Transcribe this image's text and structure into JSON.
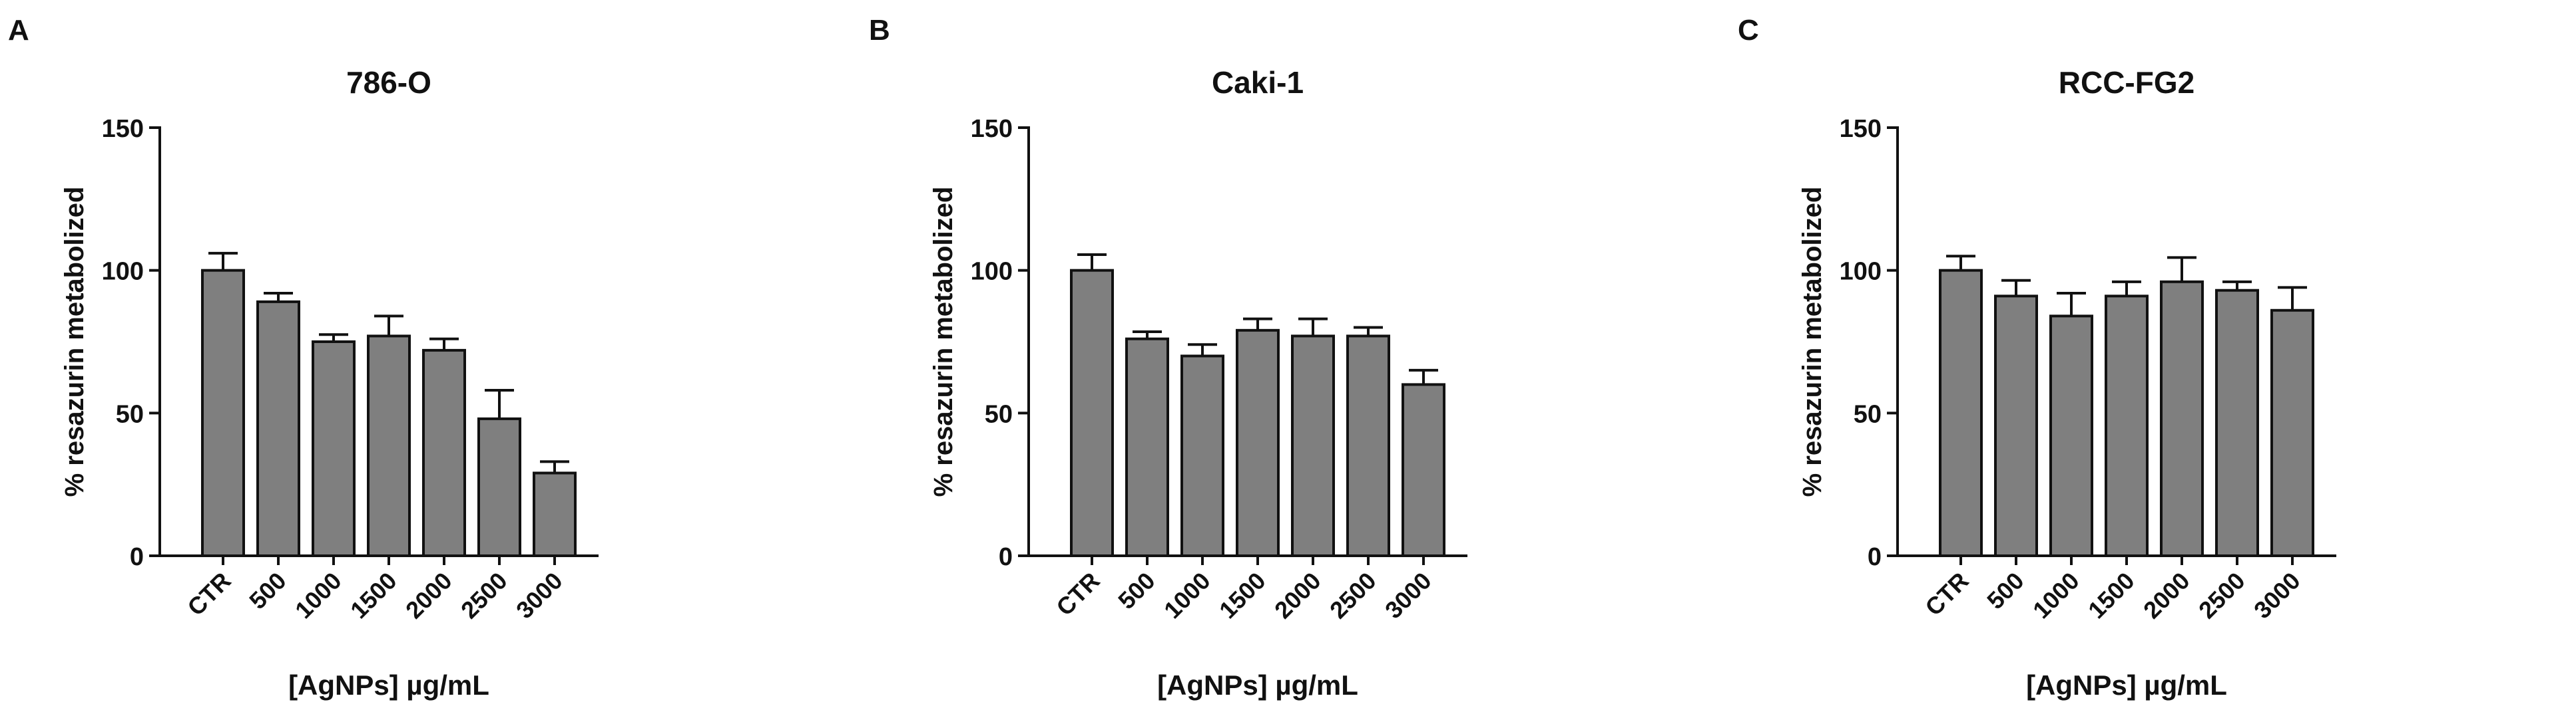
{
  "figure": {
    "bar_color": "#7f7f7f",
    "axis_color": "#111111"
  },
  "chart_data": [
    {
      "panel_label": "A",
      "type": "bar",
      "title": "786-O",
      "xlabel": "[AgNPs] µg/mL",
      "ylabel": "% resazurin metabolized",
      "categories": [
        "CTR",
        "500",
        "1000",
        "1500",
        "2000",
        "2500",
        "3000"
      ],
      "values": [
        100,
        89,
        75,
        77,
        72,
        48,
        29
      ],
      "errors": [
        6,
        3,
        2.5,
        7,
        4,
        10,
        4
      ],
      "ylim": [
        0,
        150
      ],
      "yticks": [
        0,
        50,
        100,
        150
      ],
      "grid": false,
      "legend": "none"
    },
    {
      "panel_label": "B",
      "type": "bar",
      "title": "Caki-1",
      "xlabel": "[AgNPs] µg/mL",
      "ylabel": "% resazurin metabolized",
      "categories": [
        "CTR",
        "500",
        "1000",
        "1500",
        "2000",
        "2500",
        "3000"
      ],
      "values": [
        100,
        76,
        70,
        79,
        77,
        77,
        60
      ],
      "errors": [
        5.5,
        2.5,
        4,
        4,
        6,
        3,
        5
      ],
      "ylim": [
        0,
        150
      ],
      "yticks": [
        0,
        50,
        100,
        150
      ],
      "grid": false,
      "legend": "none"
    },
    {
      "panel_label": "C",
      "type": "bar",
      "title": "RCC-FG2",
      "xlabel": "[AgNPs] µg/mL",
      "ylabel": "% resazurin metabolized",
      "categories": [
        "CTR",
        "500",
        "1000",
        "1500",
        "2000",
        "2500",
        "3000"
      ],
      "values": [
        100,
        91,
        84,
        91,
        96,
        93,
        86
      ],
      "errors": [
        5,
        5.5,
        8,
        5,
        8.5,
        3,
        8
      ],
      "ylim": [
        0,
        150
      ],
      "yticks": [
        0,
        50,
        100,
        150
      ],
      "grid": false,
      "legend": "none"
    }
  ]
}
